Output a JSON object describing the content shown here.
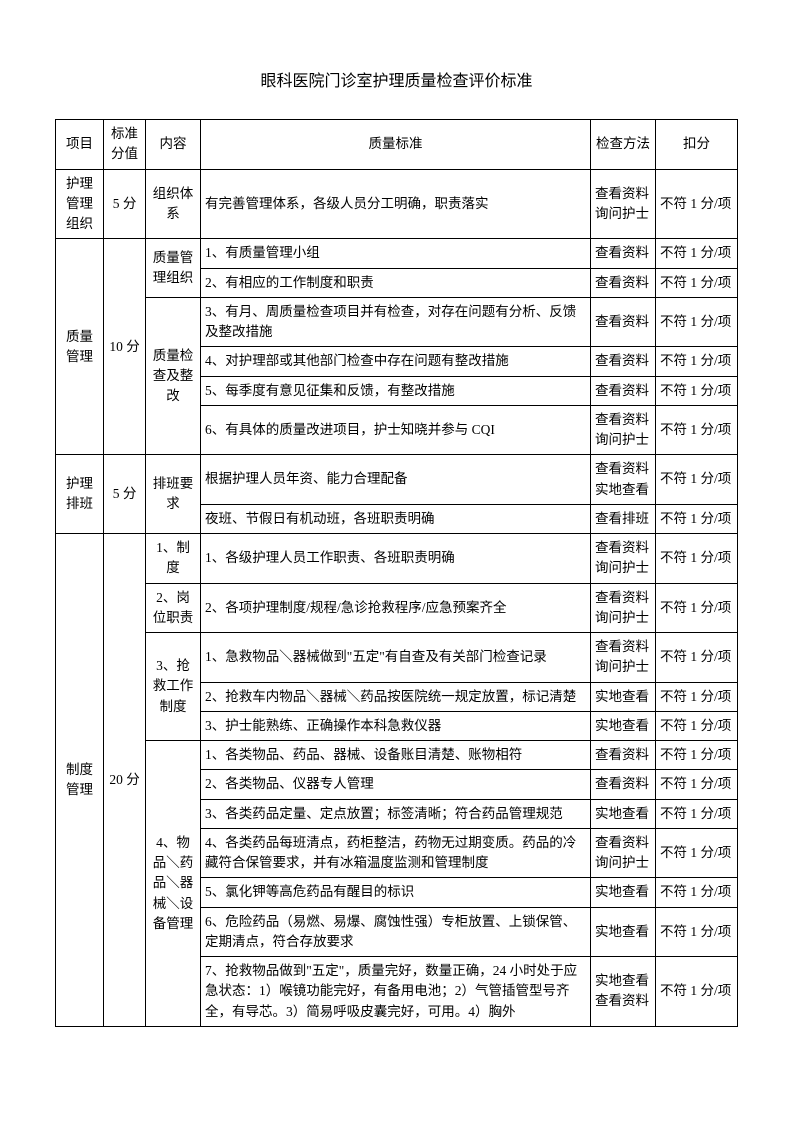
{
  "title": "眼科医院门诊室护理质量检查评价标准",
  "headers": {
    "item": "项目",
    "score": "标准分值",
    "content": "内容",
    "standard": "质量标准",
    "method": "检查方法",
    "deduct": "扣分"
  },
  "rows": [
    {
      "item": "护理管理组织",
      "score": "5 分",
      "content": "组织体系",
      "standard": "有完善管理体系，各级人员分工明确，职责落实",
      "method": "查看资料 询问护士",
      "deduct": "不符 1 分/项"
    },
    {
      "standard": "1、有质量管理小组",
      "method": "查看资料",
      "deduct": "不符 1 分/项"
    },
    {
      "standard": "2、有相应的工作制度和职责",
      "method": "查看资料",
      "deduct": "不符 1 分/项"
    },
    {
      "standard": "3、有月、周质量检查项目并有检查，对存在问题有分析、反馈及整改措施",
      "method": "查看资料",
      "deduct": "不符 1 分/项"
    },
    {
      "standard": "4、对护理部或其他部门检查中存在问题有整改措施",
      "method": "查看资料",
      "deduct": "不符 1 分/项"
    },
    {
      "standard": "5、每季度有意见征集和反馈，有整改措施",
      "method": "查看资料",
      "deduct": "不符 1 分/项"
    },
    {
      "standard": "6、有具体的质量改进项目，护士知晓并参与 CQI",
      "method": "查看资料 询问护士",
      "deduct": "不符 1 分/项"
    },
    {
      "standard": "根据护理人员年资、能力合理配备",
      "method": "查看资料 实地查看",
      "deduct": "不符 1 分/项"
    },
    {
      "standard": "夜班、节假日有机动班，各班职责明确",
      "method": "查看排班",
      "deduct": "不符 1 分/项"
    },
    {
      "standard": "1、各级护理人员工作职责、各班职责明确",
      "method": "查看资料 询问护士",
      "deduct": "不符 1 分/项"
    },
    {
      "standard": "2、各项护理制度/规程/急诊抢救程序/应急预案齐全",
      "method": "查看资料 询问护士",
      "deduct": "不符 1 分/项"
    },
    {
      "standard": "1、急救物品＼器械做到\"五定\"有自查及有关部门检查记录",
      "method": "查看资料 询问护士",
      "deduct": "不符 1 分/项"
    },
    {
      "standard": "2、抢救车内物品＼器械＼药品按医院统一规定放置，标记清楚",
      "method": "实地查看",
      "deduct": "不符 1 分/项"
    },
    {
      "standard": "3、护士能熟练、正确操作本科急救仪器",
      "method": "实地查看",
      "deduct": "不符 1 分/项"
    },
    {
      "standard": "1、各类物品、药品、器械、设备账目清楚、账物相符",
      "method": "查看资料",
      "deduct": "不符 1 分/项"
    },
    {
      "standard": "2、各类物品、仪器专人管理",
      "method": "查看资料",
      "deduct": "不符 1 分/项"
    },
    {
      "standard": "3、各类药品定量、定点放置；标签清晰；符合药品管理规范",
      "method": "实地查看",
      "deduct": "不符 1 分/项"
    },
    {
      "standard": "4、各类药品每班清点，药柜整洁，药物无过期变质。药品的冷藏符合保管要求，并有冰箱温度监测和管理制度",
      "method": "查看资料 询问护士",
      "deduct": "不符 1 分/项"
    },
    {
      "standard": "5、氯化钾等高危药品有醒目的标识",
      "method": "实地查看",
      "deduct": "不符 1 分/项"
    },
    {
      "standard": "6、危险药品（易燃、易爆、腐蚀性强）专柜放置、上锁保管、定期清点，符合存放要求",
      "method": "实地查看",
      "deduct": "不符 1 分/项"
    },
    {
      "standard": "7、抢救物品做到\"五定\"，质量完好，数量正确，24 小时处于应急状态：1）喉镜功能完好，有备用电池；2）气管插管型号齐全，有导芯。3）简易呼吸皮囊完好，可用。4）胸外",
      "method": "实地查看 查看资料",
      "deduct": "不符 1 分/项"
    }
  ],
  "groups": {
    "quality_mgmt": {
      "item": "质量管理",
      "score": "10 分",
      "content1": "质量管理组织",
      "content2": "质量检查及整改"
    },
    "schedule": {
      "item": "护理排班",
      "score": "5 分",
      "content": "排班要求"
    },
    "system": {
      "item": "制度管理",
      "score": "20 分",
      "c1": "1、制度",
      "c2": "2、岗位职责",
      "c3": "3、抢救工作制度",
      "c4": "4、物品＼药品＼器械＼设备管理"
    }
  }
}
